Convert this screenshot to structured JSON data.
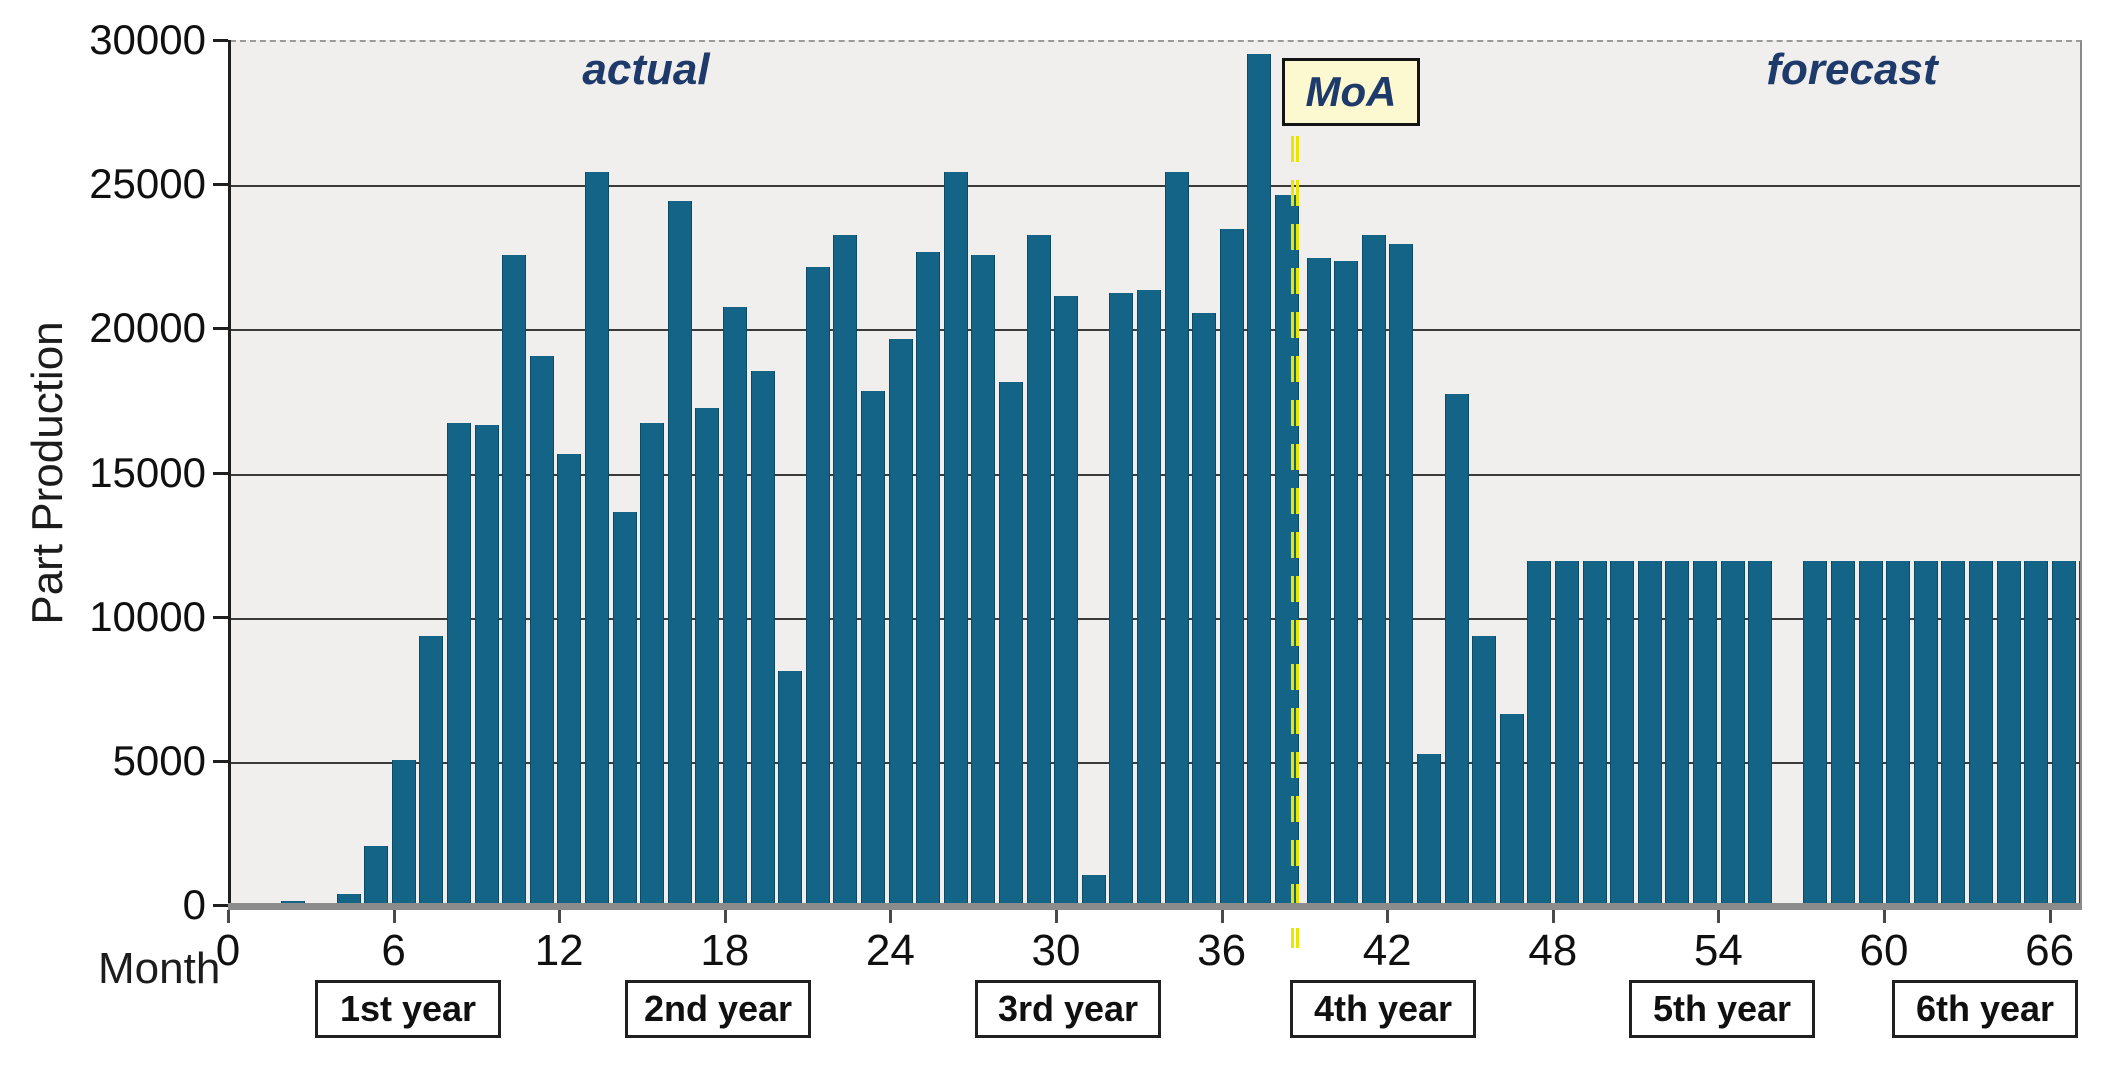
{
  "chart_data": {
    "type": "bar",
    "title": "",
    "xlabel": "Month",
    "ylabel": "Part Production",
    "ylim": [
      0,
      30000
    ],
    "yticks": [
      0,
      5000,
      10000,
      15000,
      20000,
      25000,
      30000
    ],
    "xticks": [
      0,
      6,
      12,
      18,
      24,
      30,
      36,
      42,
      48,
      54,
      60,
      66
    ],
    "grid": "horizontal solid dark lines at each 5000; top border dashed",
    "legend": "none",
    "months": [
      1,
      2,
      3,
      4,
      5,
      6,
      7,
      8,
      9,
      10,
      11,
      12,
      13,
      14,
      15,
      16,
      17,
      18,
      19,
      20,
      21,
      22,
      23,
      24,
      25,
      26,
      27,
      28,
      29,
      30,
      31,
      32,
      33,
      34,
      35,
      36,
      37,
      38,
      39,
      40,
      41,
      42,
      43,
      44,
      45,
      46,
      47,
      48,
      49,
      50,
      51,
      52,
      53,
      54,
      55,
      56,
      57,
      58,
      59,
      60,
      61,
      62,
      63,
      64,
      65,
      66,
      67
    ],
    "values": [
      0,
      200,
      0,
      450,
      2100,
      5100,
      9400,
      16800,
      16700,
      22600,
      19100,
      15700,
      25500,
      13700,
      16800,
      24500,
      17300,
      20800,
      18600,
      8200,
      22200,
      23300,
      17900,
      19700,
      22700,
      25500,
      22600,
      18200,
      23300,
      21200,
      1100,
      21300,
      21400,
      25500,
      20600,
      23500,
      29600,
      24700,
      22500,
      22400,
      23300,
      23000,
      5300,
      17800,
      9400,
      6700,
      12000,
      12000,
      12000,
      12000,
      12000,
      12000,
      12000,
      12000,
      12000,
      0,
      12000,
      12000,
      12000,
      12000,
      12000,
      12000,
      12000,
      12000,
      12000,
      12000,
      12000
    ],
    "moa_line_month": 38.5,
    "annotations": {
      "actual": "actual",
      "moa": "MoA",
      "forecast": "forecast"
    },
    "year_boxes": [
      "1st year",
      "2nd year",
      "3rd year",
      "4th year",
      "5th year",
      "6th year"
    ],
    "colors": {
      "bar": "#136487",
      "bar_edge": "#0e4a66",
      "plot_background": "#f0efed",
      "gridline": "#3a3a3a",
      "baseline": "#8c8c8c",
      "moa_line_yellow": "#e9e400",
      "moa_box_fill": "#fcf9d0",
      "navy_text": "#1d3a6b"
    }
  }
}
